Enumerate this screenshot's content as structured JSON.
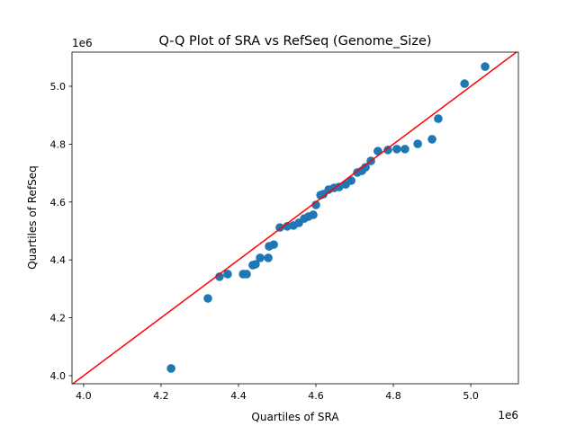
{
  "chart_data": {
    "type": "scatter",
    "title": "Q-Q Plot of SRA vs RefSeq (Genome_Size)",
    "xlabel": "Quartiles of SRA",
    "ylabel": "Quartiles of RefSeq",
    "x_offset_label": "1e6",
    "y_offset_label": "1e6",
    "xlim": [
      3.97,
      5.123
    ],
    "ylim": [
      3.972,
      5.118
    ],
    "xticks": [
      4.0,
      4.2,
      4.4,
      4.6,
      4.8,
      5.0
    ],
    "xtick_labels": [
      "4.0",
      "4.2",
      "4.4",
      "4.6",
      "4.8",
      "5.0"
    ],
    "yticks": [
      4.0,
      4.2,
      4.4,
      4.6,
      4.8,
      5.0
    ],
    "ytick_labels": [
      "4.0",
      "4.2",
      "4.4",
      "4.6",
      "4.8",
      "5.0"
    ],
    "grid": false,
    "point_color": "#1f77b4",
    "reference_line": {
      "type": "y=x",
      "color": "#ff0000"
    },
    "points": [
      [
        4.226,
        4.025
      ],
      [
        4.321,
        4.267
      ],
      [
        4.351,
        4.342
      ],
      [
        4.372,
        4.351
      ],
      [
        4.412,
        4.351
      ],
      [
        4.421,
        4.351
      ],
      [
        4.437,
        4.382
      ],
      [
        4.444,
        4.385
      ],
      [
        4.456,
        4.407
      ],
      [
        4.477,
        4.407
      ],
      [
        4.479,
        4.447
      ],
      [
        4.491,
        4.453
      ],
      [
        4.507,
        4.512
      ],
      [
        4.526,
        4.516
      ],
      [
        4.542,
        4.519
      ],
      [
        4.556,
        4.528
      ],
      [
        4.57,
        4.543
      ],
      [
        4.581,
        4.55
      ],
      [
        4.593,
        4.556
      ],
      [
        4.6,
        4.59
      ],
      [
        4.612,
        4.624
      ],
      [
        4.619,
        4.627
      ],
      [
        4.633,
        4.643
      ],
      [
        4.647,
        4.649
      ],
      [
        4.66,
        4.652
      ],
      [
        4.677,
        4.661
      ],
      [
        4.691,
        4.674
      ],
      [
        4.707,
        4.702
      ],
      [
        4.719,
        4.708
      ],
      [
        4.728,
        4.72
      ],
      [
        4.742,
        4.742
      ],
      [
        4.76,
        4.776
      ],
      [
        4.786,
        4.78
      ],
      [
        4.809,
        4.783
      ],
      [
        4.83,
        4.783
      ],
      [
        4.863,
        4.801
      ],
      [
        4.9,
        4.817
      ],
      [
        4.916,
        4.888
      ],
      [
        4.984,
        5.009
      ],
      [
        5.037,
        5.068
      ]
    ]
  }
}
